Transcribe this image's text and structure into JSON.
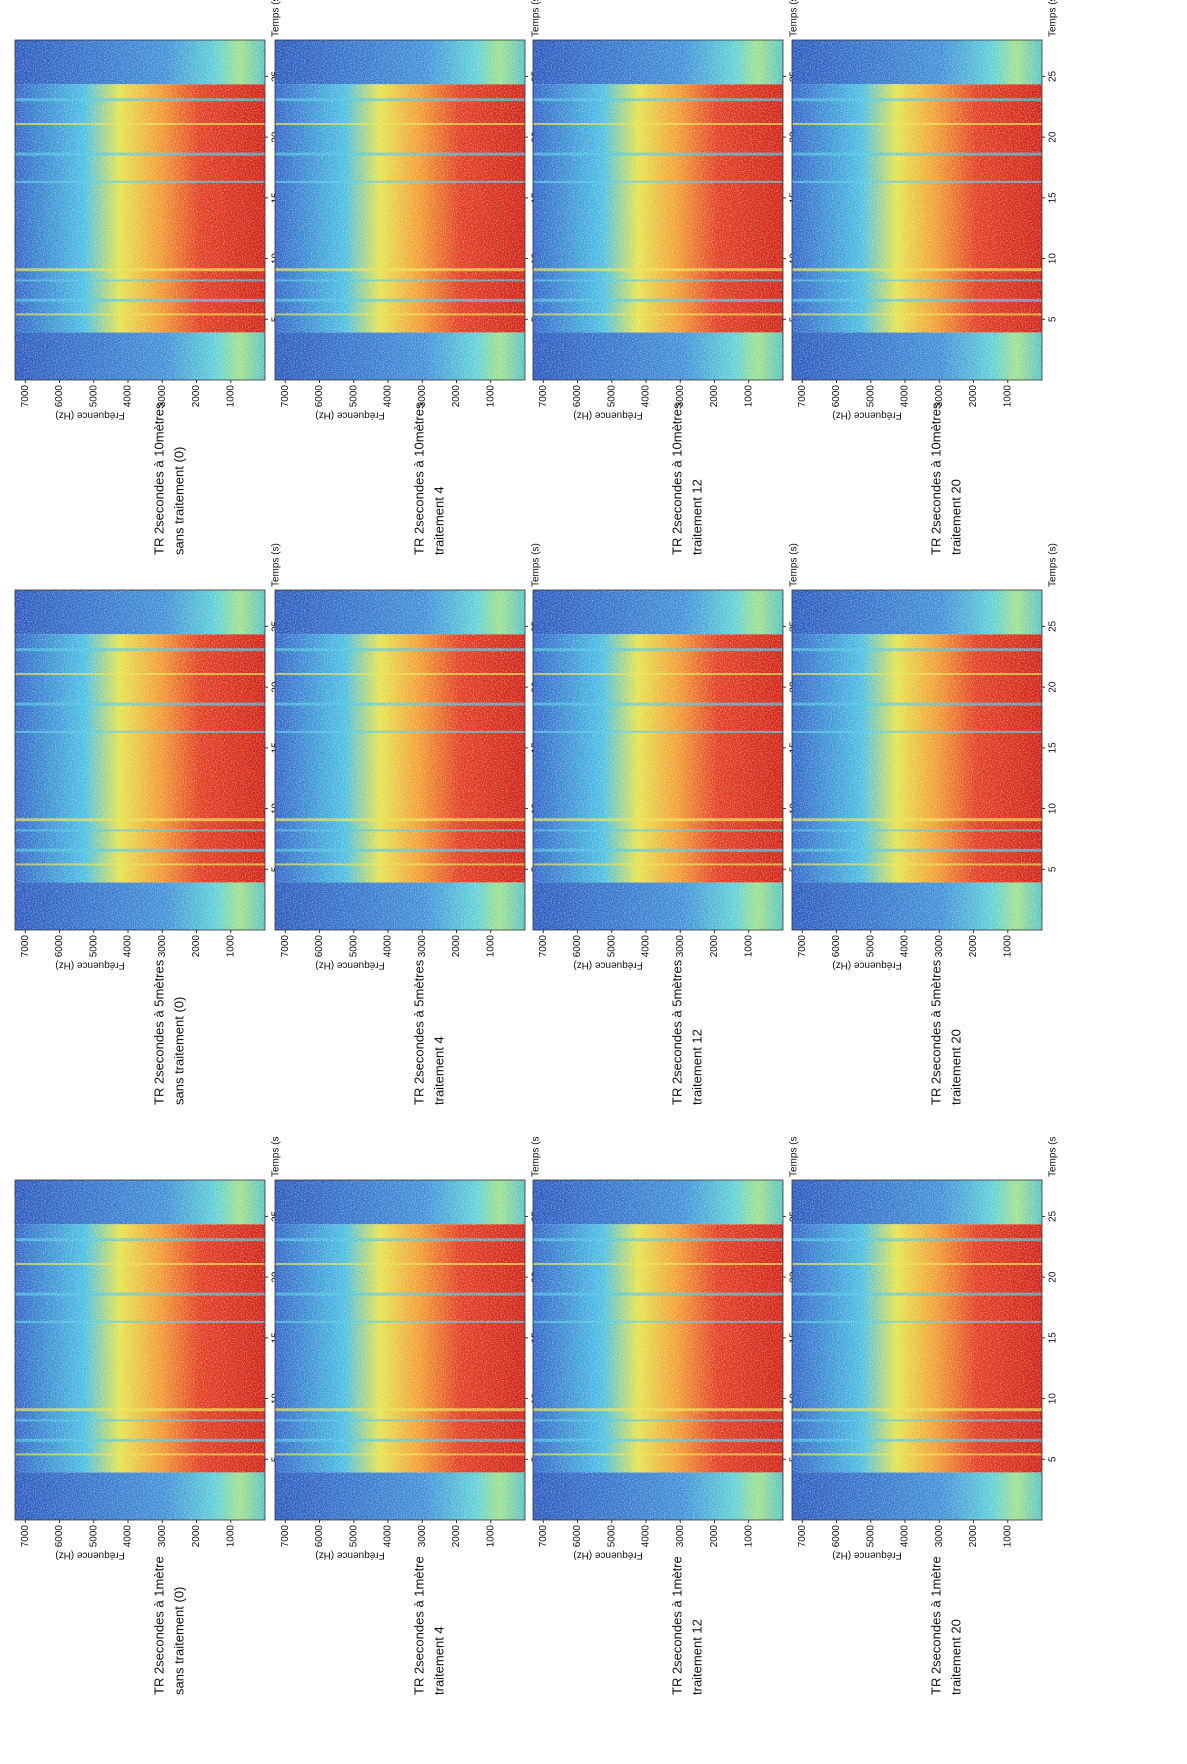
{
  "panels": [
    {
      "title_lines": [
        "TR 2secondes à 10mètres",
        "sans traitement (0)"
      ],
      "y_label": "Fréquence (Hz)",
      "x_label": "Temps (s)",
      "ylim": [
        0,
        7300
      ],
      "xlim": [
        0,
        28
      ],
      "y_ticks": [
        7000,
        6000,
        5000,
        4000,
        3000,
        2000,
        1000
      ],
      "x_ticks": [
        5,
        10,
        15,
        20,
        25
      ]
    },
    {
      "title_lines": [
        "TR 2secondes à 10mètres",
        "traitement 4"
      ],
      "y_label": "Fréquence (Hz)",
      "x_label": "Temps (s)",
      "ylim": [
        0,
        7300
      ],
      "xlim": [
        0,
        28
      ],
      "y_ticks": [
        7000,
        6000,
        5000,
        4000,
        3000,
        2000,
        1000
      ],
      "x_ticks": [
        5,
        10,
        15,
        20,
        25
      ]
    },
    {
      "title_lines": [
        "TR 2secondes à 10mètres",
        "traitement 12"
      ],
      "y_label": "Fréquence (Hz)",
      "x_label": "Temps (s)",
      "ylim": [
        0,
        7300
      ],
      "xlim": [
        0,
        28
      ],
      "y_ticks": [
        7000,
        6000,
        5000,
        4000,
        3000,
        2000,
        1000
      ],
      "x_ticks": [
        5,
        10,
        15,
        20,
        25
      ]
    },
    {
      "title_lines": [
        "TR 2secondes à 10mètres",
        "traitement 20"
      ],
      "y_label": "Fréquence (Hz)",
      "x_label": "Temps (s)",
      "ylim": [
        0,
        7300
      ],
      "xlim": [
        0,
        28
      ],
      "y_ticks": [
        7000,
        6000,
        5000,
        4000,
        3000,
        2000,
        1000
      ],
      "x_ticks": [
        5,
        10,
        15,
        20,
        25
      ]
    },
    {
      "title_lines": [
        "TR 2secondes à 5mètres",
        "sans traitement (0)"
      ],
      "y_label": "Fréquence (Hz)",
      "x_label": "Temps (s)",
      "ylim": [
        0,
        7300
      ],
      "xlim": [
        0,
        28
      ],
      "y_ticks": [
        7000,
        6000,
        5000,
        4000,
        3000,
        2000,
        1000
      ],
      "x_ticks": [
        5,
        10,
        15,
        20,
        25
      ]
    },
    {
      "title_lines": [
        "TR 2secondes à 5mètres",
        "traitement 4"
      ],
      "y_label": "Fréquence (Hz)",
      "x_label": "Temps (s)",
      "ylim": [
        0,
        7300
      ],
      "xlim": [
        0,
        28
      ],
      "y_ticks": [
        7000,
        6000,
        5000,
        4000,
        3000,
        2000,
        1000
      ],
      "x_ticks": [
        5,
        10,
        15,
        20,
        25
      ]
    },
    {
      "title_lines": [
        "TR 2secondes à 5mètres",
        "traitement 12"
      ],
      "y_label": "Fréquence (Hz)",
      "x_label": "Temps (s)",
      "ylim": [
        0,
        7300
      ],
      "xlim": [
        0,
        28
      ],
      "y_ticks": [
        7000,
        6000,
        5000,
        4000,
        3000,
        2000,
        1000
      ],
      "x_ticks": [
        5,
        10,
        15,
        20,
        25
      ]
    },
    {
      "title_lines": [
        "TR 2secondes à 5mètres",
        "traitement 20"
      ],
      "y_label": "Fréquence (Hz)",
      "x_label": "Temps (s)",
      "ylim": [
        0,
        7300
      ],
      "xlim": [
        0,
        28
      ],
      "y_ticks": [
        7000,
        6000,
        5000,
        4000,
        3000,
        2000,
        1000
      ],
      "x_ticks": [
        5,
        10,
        15,
        20,
        25
      ]
    },
    {
      "title_lines": [
        "TR 2secondes à 1mètre",
        "sans traitement (0)"
      ],
      "y_label": "Fréquence (Hz)",
      "x_label": "Temps (s",
      "ylim": [
        0,
        7300
      ],
      "xlim": [
        0,
        28
      ],
      "y_ticks": [
        7000,
        6000,
        5000,
        4000,
        3000,
        2000,
        1000
      ],
      "x_ticks": [
        5,
        10,
        15,
        20,
        25
      ]
    },
    {
      "title_lines": [
        "TR 2secondes à 1mètre",
        "traitement 4"
      ],
      "y_label": "Fréquence (Hz)",
      "x_label": "Temps (s",
      "ylim": [
        0,
        7300
      ],
      "xlim": [
        0,
        28
      ],
      "y_ticks": [
        7000,
        6000,
        5000,
        4000,
        3000,
        2000,
        1000
      ],
      "x_ticks": [
        5,
        10,
        15,
        20,
        25
      ]
    },
    {
      "title_lines": [
        "TR 2secondes à 1mètre",
        "traitement 12"
      ],
      "y_label": "Fréquence (Hz)",
      "x_label": "Temps (s",
      "ylim": [
        0,
        7300
      ],
      "xlim": [
        0,
        28
      ],
      "y_ticks": [
        7000,
        6000,
        5000,
        4000,
        3000,
        2000,
        1000
      ],
      "x_ticks": [
        5,
        10,
        15,
        20,
        25
      ]
    },
    {
      "title_lines": [
        "TR 2secondes à 1mètre",
        "traitement 20"
      ],
      "y_label": "Fréquence (Hz)",
      "x_label": "Temps (s",
      "ylim": [
        0,
        7300
      ],
      "xlim": [
        0,
        28
      ],
      "y_ticks": [
        7000,
        6000,
        5000,
        4000,
        3000,
        2000,
        1000
      ],
      "x_ticks": [
        5,
        10,
        15,
        20,
        25
      ]
    }
  ]
}
